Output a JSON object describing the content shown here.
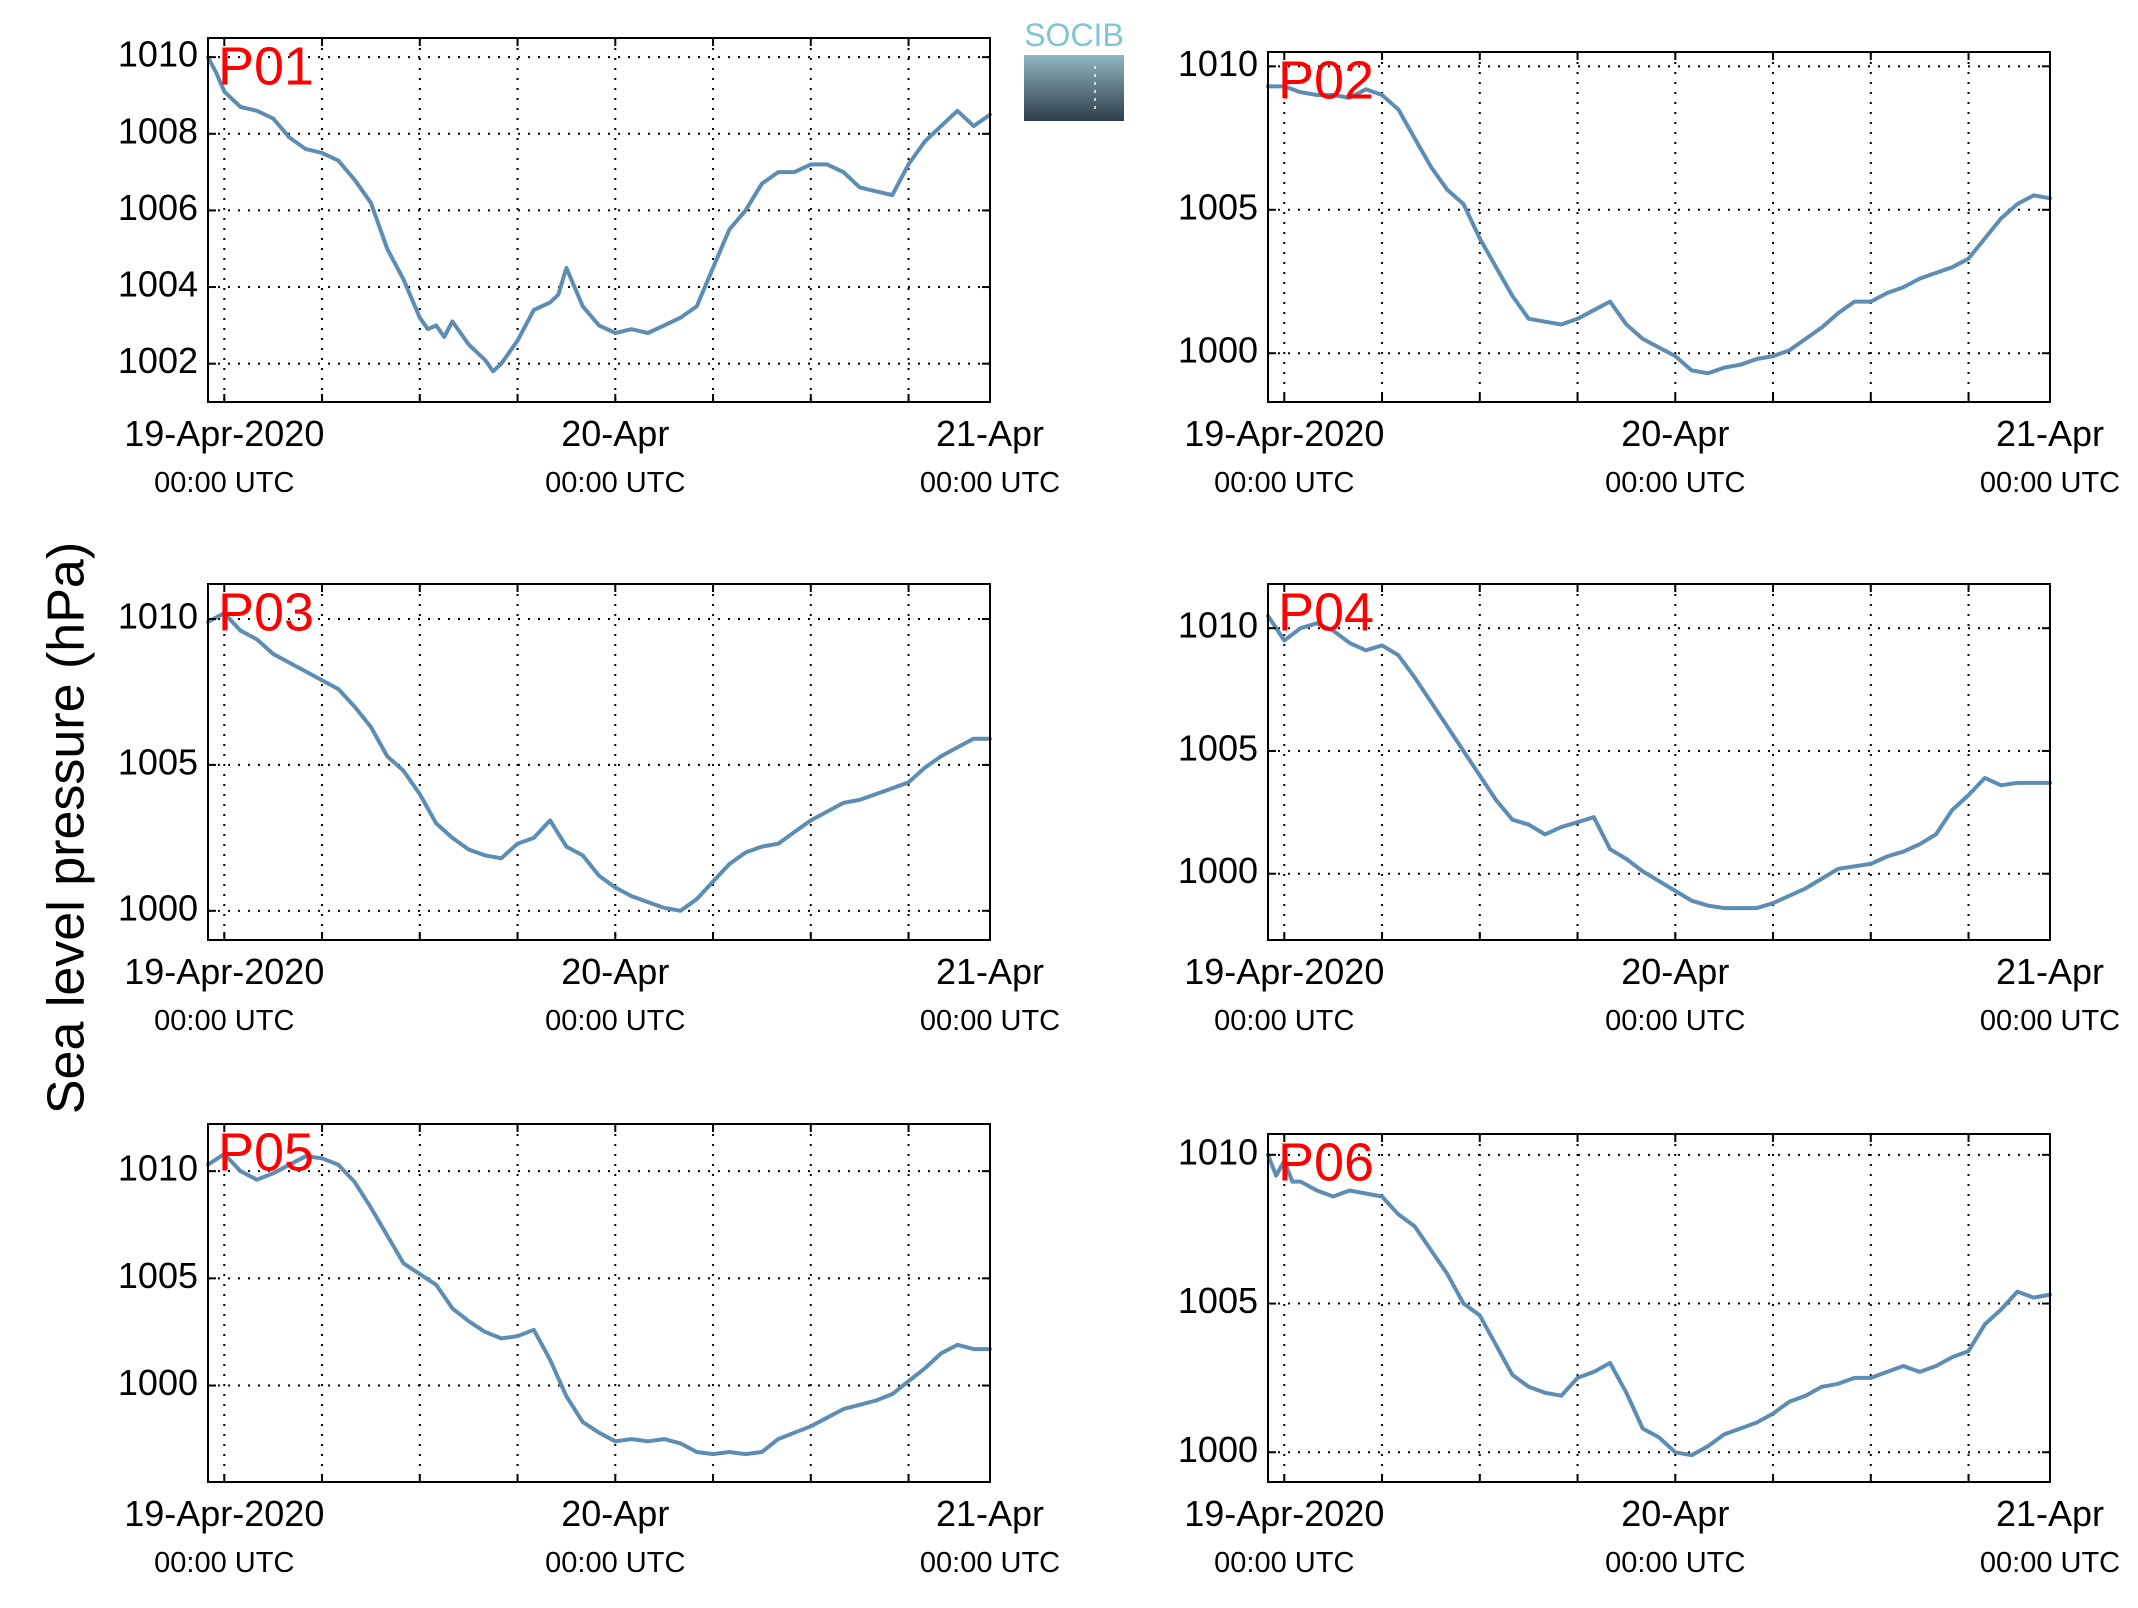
{
  "y_axis_title": "Sea level pressure (hPa)",
  "logo": {
    "text": "SOCIB",
    "colors": {
      "text": "#7fc6d6",
      "top": "#8fb6c2",
      "bottom": "#2e3e48"
    }
  },
  "colors": {
    "line": "#5e8db3",
    "station_label": "#ff0000",
    "axis": "#000000",
    "grid": "#000000"
  },
  "chart_data": [
    {
      "type": "line",
      "title": "P01",
      "ylabel": "Sea level pressure (hPa)",
      "x_unit": "hours since 19-Apr-2020 00:00 UTC",
      "xlim": [
        -1,
        47
      ],
      "ylim": [
        1001,
        1010.5
      ],
      "yticks": [
        1002,
        1004,
        1006,
        1008,
        1010
      ],
      "xticks": [
        0,
        6,
        12,
        18,
        24,
        30,
        36,
        42
      ],
      "xtick_labels": [
        {
          "x": 0,
          "lines": [
            "19-Apr-2020",
            "00:00 UTC"
          ]
        },
        {
          "x": 24,
          "lines": [
            "20-Apr",
            "00:00 UTC"
          ]
        },
        {
          "x": 47,
          "lines": [
            "21-Apr",
            "00:00 UTC"
          ]
        }
      ],
      "grid": true,
      "series": [
        {
          "x": [
            -1,
            -0.5,
            0,
            1,
            2,
            3,
            4,
            5,
            6,
            7,
            8,
            9,
            10,
            11,
            12,
            12.5,
            13,
            13.5,
            14,
            15,
            16,
            16.5,
            17,
            18,
            19,
            20,
            20.5,
            21,
            22,
            23,
            24,
            25,
            26,
            27,
            28,
            29,
            30,
            31,
            32,
            33,
            34,
            35,
            36,
            37,
            38,
            39,
            40,
            41,
            42,
            43,
            44,
            45,
            46,
            47
          ],
          "y": [
            1010.0,
            1009.6,
            1009.1,
            1008.7,
            1008.6,
            1008.4,
            1007.9,
            1007.6,
            1007.5,
            1007.3,
            1006.8,
            1006.2,
            1005.0,
            1004.2,
            1003.2,
            1002.9,
            1003.0,
            1002.7,
            1003.1,
            1002.5,
            1002.1,
            1001.8,
            1002.0,
            1002.6,
            1003.4,
            1003.6,
            1003.8,
            1004.5,
            1003.5,
            1003.0,
            1002.8,
            1002.9,
            1002.8,
            1003.0,
            1003.2,
            1003.5,
            1004.5,
            1005.5,
            1006.0,
            1006.7,
            1007.0,
            1007.0,
            1007.2,
            1007.2,
            1007.0,
            1006.6,
            1006.5,
            1006.4,
            1007.2,
            1007.8,
            1008.2,
            1008.6,
            1008.2,
            1008.5
          ]
        }
      ]
    },
    {
      "type": "line",
      "title": "P02",
      "ylabel": "Sea level pressure (hPa)",
      "x_unit": "hours since 19-Apr-2020 00:00 UTC",
      "xlim": [
        -1,
        47
      ],
      "ylim": [
        998.3,
        1010.5
      ],
      "yticks": [
        1000,
        1005,
        1010
      ],
      "xticks": [
        0,
        6,
        12,
        18,
        24,
        30,
        36,
        42
      ],
      "xtick_labels": [
        {
          "x": 0,
          "lines": [
            "19-Apr-2020",
            "00:00 UTC"
          ]
        },
        {
          "x": 24,
          "lines": [
            "20-Apr",
            "00:00 UTC"
          ]
        },
        {
          "x": 47,
          "lines": [
            "21-Apr",
            "00:00 UTC"
          ]
        }
      ],
      "grid": true,
      "series": [
        {
          "x": [
            -1,
            0,
            1,
            2,
            3,
            4,
            5,
            6,
            7,
            8,
            9,
            10,
            11,
            12,
            13,
            14,
            15,
            16,
            17,
            18,
            19,
            20,
            21,
            22,
            23,
            24,
            25,
            26,
            27,
            28,
            29,
            30,
            31,
            32,
            33,
            34,
            35,
            36,
            37,
            38,
            39,
            40,
            41,
            42,
            43,
            44,
            45,
            46,
            47
          ],
          "y": [
            1009.3,
            1009.3,
            1009.1,
            1009.0,
            1009.0,
            1008.9,
            1009.2,
            1009.0,
            1008.5,
            1007.5,
            1006.5,
            1005.7,
            1005.2,
            1004.0,
            1003.0,
            1002.0,
            1001.2,
            1001.1,
            1001.0,
            1001.2,
            1001.5,
            1001.8,
            1001.0,
            1000.5,
            1000.2,
            999.9,
            999.4,
            999.3,
            999.5,
            999.6,
            999.8,
            999.9,
            1000.1,
            1000.5,
            1000.9,
            1001.4,
            1001.8,
            1001.8,
            1002.1,
            1002.3,
            1002.6,
            1002.8,
            1003.0,
            1003.3,
            1004.0,
            1004.7,
            1005.2,
            1005.5,
            1005.4
          ]
        }
      ]
    },
    {
      "type": "line",
      "title": "P03",
      "ylabel": "Sea level pressure (hPa)",
      "x_unit": "hours since 19-Apr-2020 00:00 UTC",
      "xlim": [
        -1,
        47
      ],
      "ylim": [
        999.0,
        1011.2
      ],
      "yticks": [
        1000,
        1005,
        1010
      ],
      "xticks": [
        0,
        6,
        12,
        18,
        24,
        30,
        36,
        42
      ],
      "xtick_labels": [
        {
          "x": 0,
          "lines": [
            "19-Apr-2020",
            "00:00 UTC"
          ]
        },
        {
          "x": 24,
          "lines": [
            "20-Apr",
            "00:00 UTC"
          ]
        },
        {
          "x": 47,
          "lines": [
            "21-Apr",
            "00:00 UTC"
          ]
        }
      ],
      "grid": true,
      "series": [
        {
          "x": [
            -1,
            0,
            1,
            2,
            3,
            4,
            5,
            6,
            7,
            8,
            9,
            10,
            11,
            12,
            13,
            14,
            15,
            16,
            17,
            18,
            19,
            20,
            21,
            22,
            23,
            24,
            25,
            26,
            27,
            28,
            29,
            30,
            31,
            32,
            33,
            34,
            35,
            36,
            37,
            38,
            39,
            40,
            41,
            42,
            43,
            44,
            45,
            46,
            47
          ],
          "y": [
            1009.9,
            1010.2,
            1009.6,
            1009.3,
            1008.8,
            1008.5,
            1008.2,
            1007.9,
            1007.6,
            1007.0,
            1006.3,
            1005.3,
            1004.8,
            1004.0,
            1003.0,
            1002.5,
            1002.1,
            1001.9,
            1001.8,
            1002.3,
            1002.5,
            1003.1,
            1002.2,
            1001.9,
            1001.2,
            1000.8,
            1000.5,
            1000.3,
            1000.1,
            1000.0,
            1000.4,
            1001.0,
            1001.6,
            1002.0,
            1002.2,
            1002.3,
            1002.7,
            1003.1,
            1003.4,
            1003.7,
            1003.8,
            1004.0,
            1004.2,
            1004.4,
            1004.9,
            1005.3,
            1005.6,
            1005.9,
            1005.9
          ]
        }
      ]
    },
    {
      "type": "line",
      "title": "P04",
      "ylabel": "Sea level pressure (hPa)",
      "x_unit": "hours since 19-Apr-2020 00:00 UTC",
      "xlim": [
        -1,
        47
      ],
      "ylim": [
        997.3,
        1011.8
      ],
      "yticks": [
        1000,
        1005,
        1010
      ],
      "xticks": [
        0,
        6,
        12,
        18,
        24,
        30,
        36,
        42
      ],
      "xtick_labels": [
        {
          "x": 0,
          "lines": [
            "19-Apr-2020",
            "00:00 UTC"
          ]
        },
        {
          "x": 24,
          "lines": [
            "20-Apr",
            "00:00 UTC"
          ]
        },
        {
          "x": 47,
          "lines": [
            "21-Apr",
            "00:00 UTC"
          ]
        }
      ],
      "grid": true,
      "series": [
        {
          "x": [
            -1,
            0,
            1,
            2,
            3,
            4,
            5,
            6,
            7,
            8,
            9,
            10,
            11,
            12,
            13,
            14,
            15,
            16,
            17,
            18,
            19,
            20,
            21,
            22,
            23,
            24,
            25,
            26,
            27,
            28,
            29,
            30,
            31,
            32,
            33,
            34,
            35,
            36,
            37,
            38,
            39,
            40,
            41,
            42,
            43,
            44,
            45,
            46,
            47
          ],
          "y": [
            1010.5,
            1009.5,
            1010.0,
            1010.2,
            1009.9,
            1009.4,
            1009.1,
            1009.3,
            1008.9,
            1008.0,
            1007.0,
            1006.0,
            1005.0,
            1004.0,
            1003.0,
            1002.2,
            1002.0,
            1001.6,
            1001.9,
            1002.1,
            1002.3,
            1001.0,
            1000.6,
            1000.1,
            999.7,
            999.3,
            998.9,
            998.7,
            998.6,
            998.6,
            998.6,
            998.8,
            999.1,
            999.4,
            999.8,
            1000.2,
            1000.3,
            1000.4,
            1000.7,
            1000.9,
            1001.2,
            1001.6,
            1002.6,
            1003.2,
            1003.9,
            1003.6,
            1003.7,
            1003.7,
            1003.7
          ]
        }
      ]
    },
    {
      "type": "line",
      "title": "P05",
      "ylabel": "Sea level pressure (hPa)",
      "x_unit": "hours since 19-Apr-2020 00:00 UTC",
      "xlim": [
        -1,
        47
      ],
      "ylim": [
        995.5,
        1012.2
      ],
      "yticks": [
        1000,
        1005,
        1010
      ],
      "xticks": [
        0,
        6,
        12,
        18,
        24,
        30,
        36,
        42
      ],
      "xtick_labels": [
        {
          "x": 0,
          "lines": [
            "19-Apr-2020",
            "00:00 UTC"
          ]
        },
        {
          "x": 24,
          "lines": [
            "20-Apr",
            "00:00 UTC"
          ]
        },
        {
          "x": 47,
          "lines": [
            "21-Apr",
            "00:00 UTC"
          ]
        }
      ],
      "grid": true,
      "series": [
        {
          "x": [
            -1,
            0,
            1,
            2,
            3,
            4,
            5,
            6,
            7,
            8,
            9,
            10,
            11,
            12,
            13,
            14,
            15,
            16,
            17,
            18,
            19,
            20,
            21,
            22,
            23,
            24,
            25,
            26,
            27,
            28,
            29,
            30,
            31,
            32,
            33,
            34,
            35,
            36,
            37,
            38,
            39,
            40,
            41,
            42,
            43,
            44,
            45,
            46,
            47
          ],
          "y": [
            1010.3,
            1010.8,
            1010.0,
            1009.6,
            1009.9,
            1010.3,
            1010.7,
            1010.6,
            1010.3,
            1009.5,
            1008.3,
            1007.0,
            1005.7,
            1005.2,
            1004.7,
            1003.6,
            1003.0,
            1002.5,
            1002.2,
            1002.3,
            1002.6,
            1001.2,
            999.5,
            998.3,
            997.8,
            997.4,
            997.5,
            997.4,
            997.5,
            997.3,
            996.9,
            996.8,
            996.9,
            996.8,
            996.9,
            997.5,
            997.8,
            998.1,
            998.5,
            998.9,
            999.1,
            999.3,
            999.6,
            1000.2,
            1000.8,
            1001.5,
            1001.9,
            1001.7,
            1001.7
          ]
        }
      ]
    },
    {
      "type": "line",
      "title": "P06",
      "ylabel": "Sea level pressure (hPa)",
      "x_unit": "hours since 19-Apr-2020 00:00 UTC",
      "xlim": [
        -1,
        47
      ],
      "ylim": [
        999.0,
        1010.7
      ],
      "yticks": [
        1000,
        1005,
        1010
      ],
      "xticks": [
        0,
        6,
        12,
        18,
        24,
        30,
        36,
        42
      ],
      "xtick_labels": [
        {
          "x": 0,
          "lines": [
            "19-Apr-2020",
            "00:00 UTC"
          ]
        },
        {
          "x": 24,
          "lines": [
            "20-Apr",
            "00:00 UTC"
          ]
        },
        {
          "x": 47,
          "lines": [
            "21-Apr",
            "00:00 UTC"
          ]
        }
      ],
      "grid": true,
      "series": [
        {
          "x": [
            -1,
            -0.5,
            0,
            0.5,
            1,
            2,
            3,
            4,
            5,
            6,
            7,
            8,
            9,
            10,
            11,
            12,
            13,
            14,
            15,
            16,
            17,
            18,
            19,
            20,
            21,
            22,
            23,
            24,
            25,
            26,
            27,
            28,
            29,
            30,
            31,
            32,
            33,
            34,
            35,
            36,
            37,
            38,
            39,
            40,
            41,
            42,
            43,
            44,
            45,
            46,
            47
          ],
          "y": [
            1010.0,
            1009.3,
            1009.8,
            1009.1,
            1009.1,
            1008.8,
            1008.6,
            1008.8,
            1008.7,
            1008.6,
            1008.0,
            1007.6,
            1006.8,
            1006.0,
            1005.0,
            1004.6,
            1003.6,
            1002.6,
            1002.2,
            1002.0,
            1001.9,
            1002.5,
            1002.7,
            1003.0,
            1002.0,
            1000.8,
            1000.5,
            1000.0,
            999.9,
            1000.2,
            1000.6,
            1000.8,
            1001.0,
            1001.3,
            1001.7,
            1001.9,
            1002.2,
            1002.3,
            1002.5,
            1002.5,
            1002.7,
            1002.9,
            1002.7,
            1002.9,
            1003.2,
            1003.4,
            1004.3,
            1004.8,
            1005.4,
            1005.2,
            1005.3
          ]
        }
      ]
    }
  ]
}
